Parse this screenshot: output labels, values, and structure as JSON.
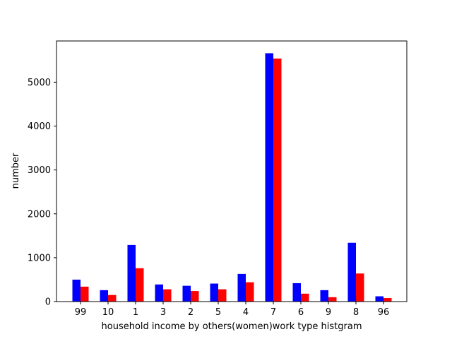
{
  "chart_data": {
    "type": "bar",
    "title": "",
    "xlabel": "household income by others(women)work type histgram",
    "ylabel": "number",
    "categories": [
      "99",
      "10",
      "1",
      "3",
      "2",
      "5",
      "4",
      "7",
      "6",
      "9",
      "8",
      "96"
    ],
    "series": [
      {
        "color": "#0000ff",
        "values": [
          500,
          260,
          1290,
          390,
          360,
          410,
          630,
          5660,
          420,
          260,
          1340,
          120
        ]
      },
      {
        "color": "#ff0000",
        "values": [
          340,
          150,
          760,
          280,
          240,
          280,
          440,
          5540,
          180,
          100,
          640,
          80
        ]
      }
    ],
    "ylim": [
      0,
      5940
    ],
    "yticks": [
      0,
      1000,
      2000,
      3000,
      4000,
      5000
    ],
    "grid": false
  }
}
